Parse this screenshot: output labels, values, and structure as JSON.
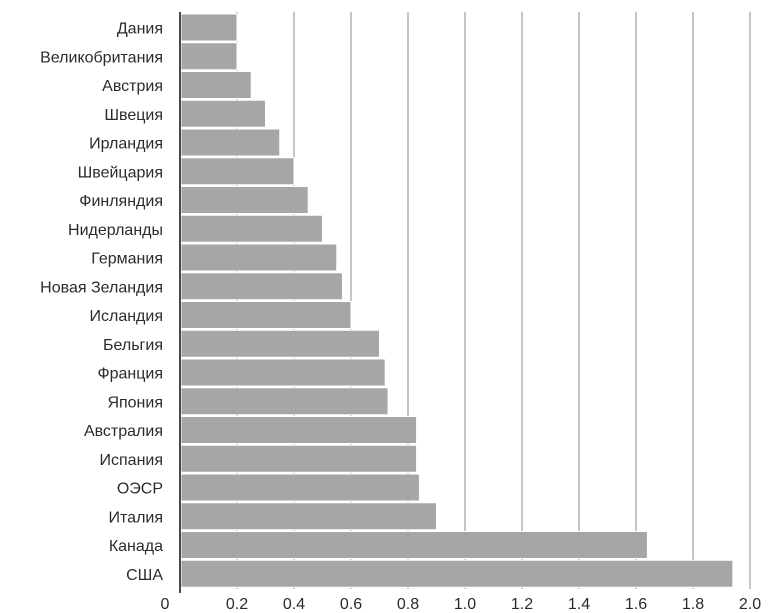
{
  "chart_data": {
    "type": "bar",
    "orientation": "horizontal",
    "title": "",
    "xlabel": "",
    "ylabel": "",
    "categories": [
      "Дания",
      "Великобритания",
      "Австрия",
      "Швеция",
      "Ирландия",
      "Швейцария",
      "Финляндия",
      "Нидерланды",
      "Германия",
      "Новая Зеландия",
      "Исландия",
      "Бельгия",
      "Франция",
      "Япония",
      "Австралия",
      "Испания",
      "ОЭСР",
      "Италия",
      "Канада",
      "США"
    ],
    "values": [
      0.2,
      0.2,
      0.25,
      0.3,
      0.35,
      0.4,
      0.45,
      0.5,
      0.55,
      0.57,
      0.6,
      0.7,
      0.72,
      0.73,
      0.83,
      0.83,
      0.84,
      0.9,
      1.64,
      1.94
    ],
    "xlim": [
      0,
      2.0
    ],
    "x_ticks": [
      "0",
      "0.2",
      "0.4",
      "0.6",
      "0.8",
      "1.0",
      "1.2",
      "1.4",
      "1.6",
      "1.8",
      "2.0"
    ],
    "x_tick_values": [
      0,
      0.2,
      0.4,
      0.6,
      0.8,
      1.0,
      1.2,
      1.4,
      1.6,
      1.8,
      2.0
    ],
    "grid": "vertical",
    "legend": "none",
    "colors": {
      "bar": "#a6a6a6",
      "grid": "#8c8c8c",
      "axis": "#4a4a4a",
      "text": "#2b2b2b"
    }
  }
}
